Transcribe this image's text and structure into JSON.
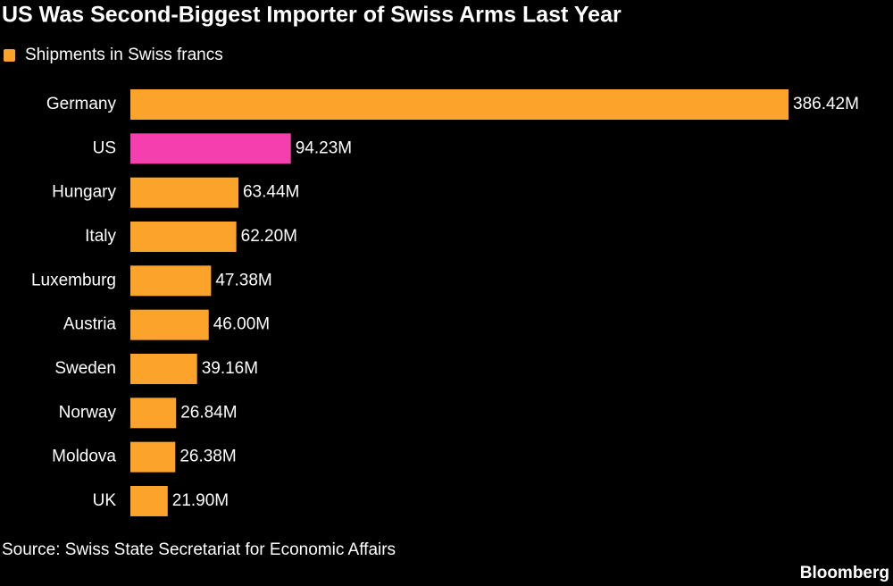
{
  "chart_data": {
    "type": "hbar",
    "title": "US Was Second-Biggest Importer of Swiss Arms Last Year",
    "categories": [
      "Germany",
      "US",
      "Hungary",
      "Italy",
      "Luxemburg",
      "Austria",
      "Sweden",
      "Norway",
      "Moldova",
      "UK"
    ],
    "series": [
      {
        "name": "Shipments in Swiss francs",
        "color": "#fca32c",
        "colors": [
          "#fca32c",
          "#f53fae",
          "#fca32c",
          "#fca32c",
          "#fca32c",
          "#fca32c",
          "#fca32c",
          "#fca32c",
          "#fca32c",
          "#fca32c"
        ],
        "values": [
          386.42,
          94.23,
          63.44,
          62.2,
          47.38,
          46.0,
          39.16,
          26.84,
          26.38,
          21.9
        ],
        "value_labels": [
          "386.42M",
          "94.23M",
          "63.44M",
          "62.20M",
          "47.38M",
          "46.00M",
          "39.16M",
          "26.84M",
          "26.38M",
          "21.90M"
        ]
      }
    ],
    "source": "Source: Swiss State Secretariat for Economic Affairs",
    "credit": "Bloomberg"
  }
}
